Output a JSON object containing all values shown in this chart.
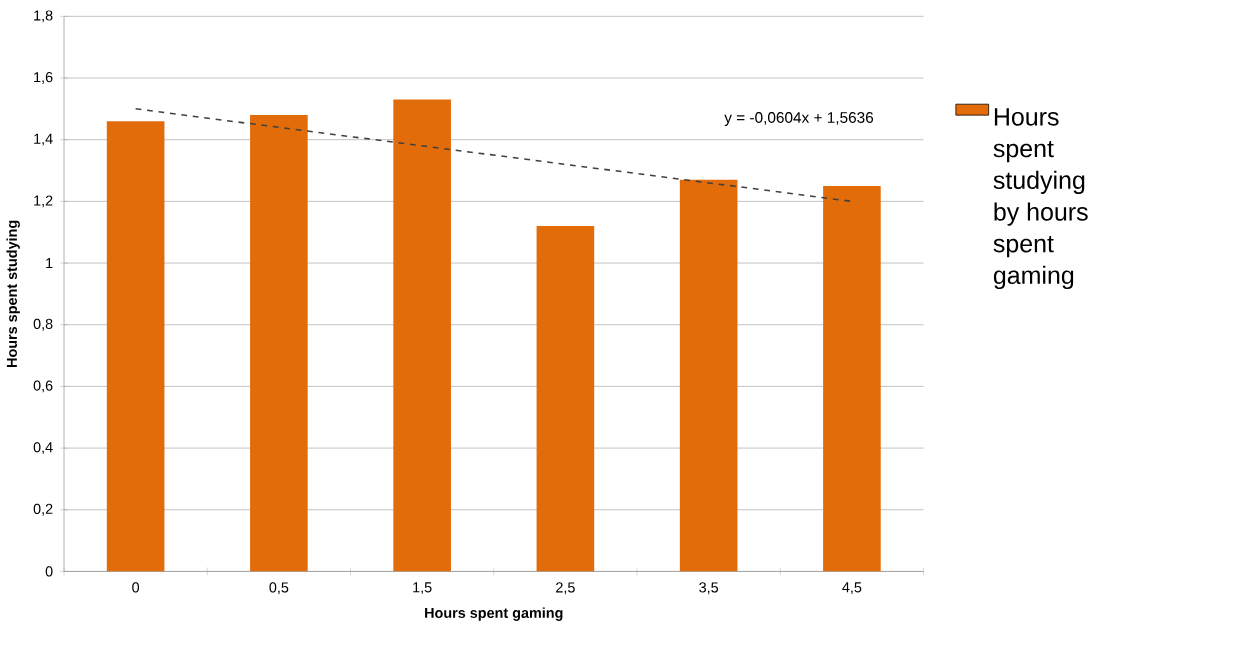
{
  "chart_data": {
    "type": "bar",
    "xlabel": "Hours spent gaming",
    "ylabel": "Hours spent studying",
    "categories": [
      "0",
      "0,5",
      "1,5",
      "2,5",
      "3,5",
      "4,5"
    ],
    "series": [
      {
        "name": "Hours spent studying by hours spent gaming",
        "color": "#e36c0a",
        "values": [
          1.46,
          1.48,
          1.53,
          1.12,
          1.27,
          1.25
        ]
      },
      {
        "type": "line",
        "color": "#404040",
        "line_style": "dashed",
        "values": [
          1.5,
          1.44,
          1.38,
          1.32,
          1.26,
          1.2
        ]
      }
    ],
    "ylim": [
      0,
      1.8
    ],
    "yticks": [
      0,
      {
        "value": 0.2,
        "label": "0,2"
      },
      {
        "value": 0.4,
        "label": "0,4"
      },
      {
        "value": 0.6,
        "label": "0,6"
      },
      {
        "value": 0.8,
        "label": "0,8"
      },
      1,
      {
        "value": 1.2,
        "label": "1,2"
      },
      {
        "value": 1.4,
        "label": "1,4"
      },
      {
        "value": 1.6,
        "label": "1,6"
      },
      {
        "value": 1.8,
        "label": "1,8"
      }
    ],
    "grid": "y",
    "legend": "right",
    "annotations": [
      "y = -0,0604x + 1,5636"
    ]
  }
}
